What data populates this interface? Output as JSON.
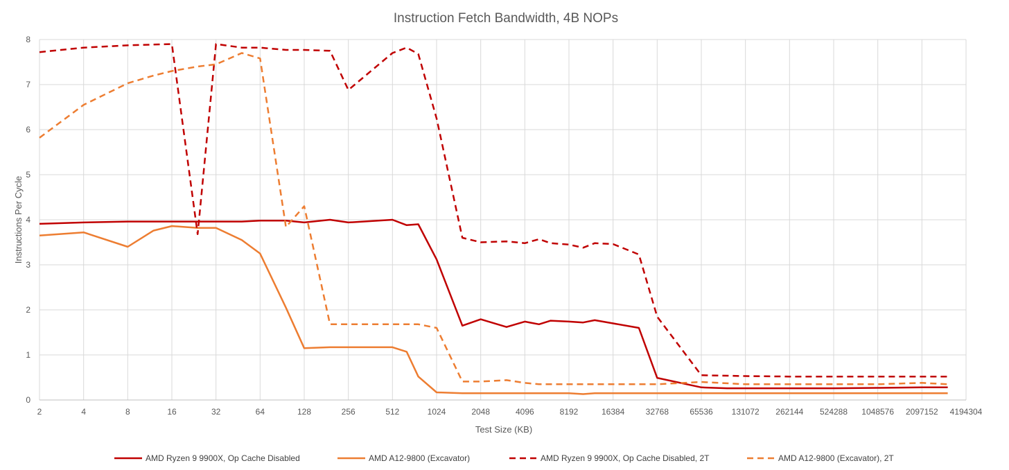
{
  "chart_data": {
    "type": "line",
    "title": "Instruction Fetch Bandwidth, 4B NOPs",
    "xlabel": "Test Size (KB)",
    "ylabel": "Instructions Per Cycle",
    "x_scale": "log2",
    "x_ticks": [
      "2",
      "4",
      "8",
      "16",
      "32",
      "64",
      "128",
      "256",
      "512",
      "1024",
      "2048",
      "4096",
      "8192",
      "16384",
      "32768",
      "65536",
      "131072",
      "262144",
      "524288",
      "1048576",
      "2097152",
      "4194304"
    ],
    "ylim": [
      0,
      8
    ],
    "y_ticks": [
      "0",
      "1",
      "2",
      "3",
      "4",
      "5",
      "6",
      "7",
      "8"
    ],
    "grid": true,
    "legend_position": "bottom",
    "series": [
      {
        "name": "AMD Ryzen 9 9900X, Op Cache Disabled",
        "color": "#c00000",
        "dash": "solid",
        "points": [
          [
            2,
            3.91
          ],
          [
            4,
            3.94
          ],
          [
            8,
            3.96
          ],
          [
            16,
            3.96
          ],
          [
            32,
            3.96
          ],
          [
            48,
            3.96
          ],
          [
            64,
            3.98
          ],
          [
            96,
            3.98
          ],
          [
            128,
            3.94
          ],
          [
            192,
            4.0
          ],
          [
            256,
            3.94
          ],
          [
            512,
            4.0
          ],
          [
            640,
            3.88
          ],
          [
            768,
            3.9
          ],
          [
            1024,
            3.12
          ],
          [
            1536,
            1.65
          ],
          [
            2048,
            1.79
          ],
          [
            3072,
            1.62
          ],
          [
            4096,
            1.74
          ],
          [
            5120,
            1.68
          ],
          [
            6144,
            1.76
          ],
          [
            8192,
            1.74
          ],
          [
            10240,
            1.72
          ],
          [
            12288,
            1.77
          ],
          [
            16384,
            1.7
          ],
          [
            24576,
            1.6
          ],
          [
            32768,
            0.49
          ],
          [
            65536,
            0.28
          ],
          [
            98304,
            0.26
          ],
          [
            131072,
            0.26
          ],
          [
            262144,
            0.26
          ],
          [
            524288,
            0.26
          ],
          [
            1048576,
            0.27
          ],
          [
            2097152,
            0.28
          ],
          [
            3145728,
            0.28
          ]
        ]
      },
      {
        "name": "AMD A12-9800 (Excavator)",
        "color": "#ed7d31",
        "dash": "solid",
        "points": [
          [
            2,
            3.65
          ],
          [
            4,
            3.72
          ],
          [
            8,
            3.4
          ],
          [
            12,
            3.76
          ],
          [
            16,
            3.86
          ],
          [
            24,
            3.82
          ],
          [
            32,
            3.82
          ],
          [
            48,
            3.55
          ],
          [
            64,
            3.25
          ],
          [
            96,
            2.05
          ],
          [
            128,
            1.15
          ],
          [
            192,
            1.17
          ],
          [
            256,
            1.17
          ],
          [
            512,
            1.17
          ],
          [
            640,
            1.07
          ],
          [
            768,
            0.52
          ],
          [
            1024,
            0.17
          ],
          [
            1536,
            0.15
          ],
          [
            2048,
            0.15
          ],
          [
            4096,
            0.15
          ],
          [
            8192,
            0.15
          ],
          [
            10240,
            0.13
          ],
          [
            12288,
            0.15
          ],
          [
            16384,
            0.15
          ],
          [
            32768,
            0.15
          ],
          [
            65536,
            0.15
          ],
          [
            131072,
            0.15
          ],
          [
            262144,
            0.15
          ],
          [
            524288,
            0.15
          ],
          [
            1048576,
            0.15
          ],
          [
            2097152,
            0.15
          ],
          [
            3145728,
            0.15
          ]
        ]
      },
      {
        "name": "AMD Ryzen 9 9900X, Op Cache Disabled, 2T",
        "color": "#c00000",
        "dash": "dashed",
        "points": [
          [
            2,
            7.72
          ],
          [
            4,
            7.82
          ],
          [
            8,
            7.87
          ],
          [
            16,
            7.9
          ],
          [
            24,
            3.68
          ],
          [
            32,
            7.9
          ],
          [
            48,
            7.82
          ],
          [
            64,
            7.82
          ],
          [
            96,
            7.77
          ],
          [
            128,
            7.77
          ],
          [
            192,
            7.75
          ],
          [
            256,
            6.88
          ],
          [
            512,
            7.7
          ],
          [
            640,
            7.82
          ],
          [
            768,
            7.68
          ],
          [
            1024,
            6.25
          ],
          [
            1536,
            3.6
          ],
          [
            2048,
            3.5
          ],
          [
            3072,
            3.52
          ],
          [
            4096,
            3.48
          ],
          [
            5120,
            3.57
          ],
          [
            6144,
            3.48
          ],
          [
            8192,
            3.45
          ],
          [
            10240,
            3.38
          ],
          [
            12288,
            3.48
          ],
          [
            16384,
            3.46
          ],
          [
            24576,
            3.23
          ],
          [
            32768,
            1.85
          ],
          [
            65536,
            0.55
          ],
          [
            131072,
            0.53
          ],
          [
            262144,
            0.52
          ],
          [
            524288,
            0.52
          ],
          [
            1048576,
            0.52
          ],
          [
            2097152,
            0.52
          ],
          [
            3145728,
            0.52
          ]
        ]
      },
      {
        "name": "AMD A12-9800 (Excavator), 2T",
        "color": "#ed7d31",
        "dash": "dashed",
        "points": [
          [
            2,
            5.82
          ],
          [
            4,
            6.55
          ],
          [
            8,
            7.03
          ],
          [
            12,
            7.2
          ],
          [
            16,
            7.3
          ],
          [
            24,
            7.4
          ],
          [
            32,
            7.45
          ],
          [
            48,
            7.7
          ],
          [
            64,
            7.58
          ],
          [
            96,
            3.84
          ],
          [
            128,
            4.3
          ],
          [
            192,
            1.68
          ],
          [
            256,
            1.68
          ],
          [
            512,
            1.68
          ],
          [
            768,
            1.68
          ],
          [
            1024,
            1.6
          ],
          [
            1536,
            0.41
          ],
          [
            2048,
            0.41
          ],
          [
            3072,
            0.44
          ],
          [
            4096,
            0.38
          ],
          [
            5120,
            0.35
          ],
          [
            8192,
            0.35
          ],
          [
            16384,
            0.35
          ],
          [
            32768,
            0.35
          ],
          [
            65536,
            0.4
          ],
          [
            131072,
            0.35
          ],
          [
            262144,
            0.35
          ],
          [
            524288,
            0.35
          ],
          [
            1048576,
            0.35
          ],
          [
            2097152,
            0.38
          ],
          [
            3145728,
            0.35
          ]
        ]
      }
    ]
  }
}
